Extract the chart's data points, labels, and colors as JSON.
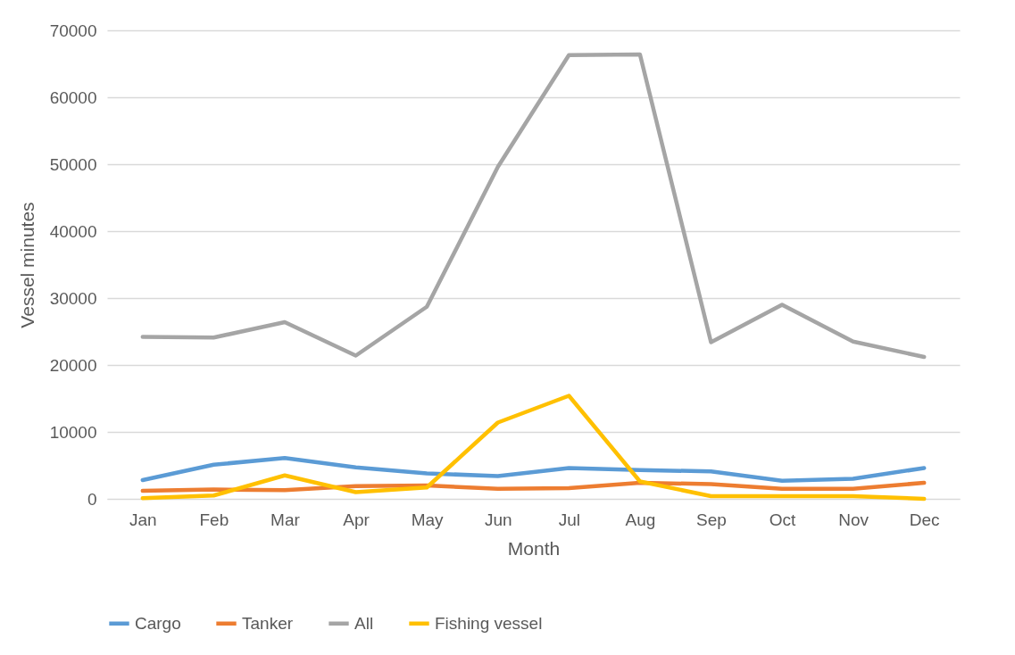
{
  "chart_data": {
    "type": "line",
    "xlabel": "Month",
    "ylabel": "Vessel minutes",
    "categories": [
      "Jan",
      "Feb",
      "Mar",
      "Apr",
      "May",
      "Jun",
      "Jul",
      "Aug",
      "Sep",
      "Oct",
      "Nov",
      "Dec"
    ],
    "series": [
      {
        "name": "Cargo",
        "color": "#5b9bd5",
        "values": [
          2800,
          5100,
          6100,
          4700,
          3800,
          3400,
          4600,
          4300,
          4100,
          2700,
          3000,
          4600
        ]
      },
      {
        "name": "Tanker",
        "color": "#ed7d31",
        "values": [
          1200,
          1400,
          1300,
          1900,
          2000,
          1500,
          1600,
          2400,
          2200,
          1500,
          1500,
          2400
        ]
      },
      {
        "name": "All",
        "color": "#a5a5a5",
        "values": [
          24200,
          24100,
          26400,
          21400,
          28700,
          49600,
          66300,
          66400,
          23400,
          29000,
          23500,
          21200
        ]
      },
      {
        "name": "Fishing vessel",
        "color": "#ffc000",
        "values": [
          100,
          500,
          3500,
          1000,
          1700,
          11400,
          15400,
          2600,
          400,
          400,
          400,
          0
        ]
      }
    ],
    "ylim": [
      0,
      70000
    ],
    "yticks": [
      0,
      10000,
      20000,
      30000,
      40000,
      50000,
      60000,
      70000
    ],
    "grid": "y",
    "legend": "bottom",
    "marker": "none",
    "line_style": "solid"
  }
}
